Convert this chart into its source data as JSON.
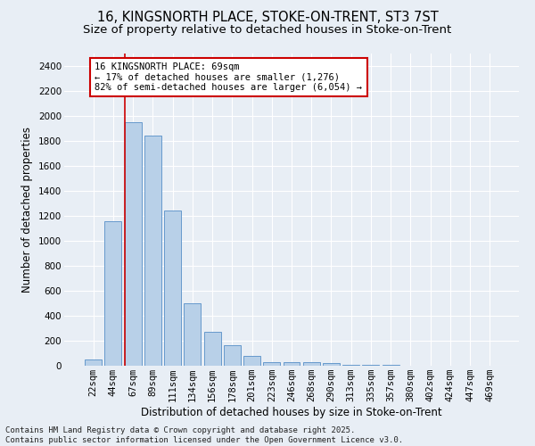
{
  "title_line1": "16, KINGSNORTH PLACE, STOKE-ON-TRENT, ST3 7ST",
  "title_line2": "Size of property relative to detached houses in Stoke-on-Trent",
  "xlabel": "Distribution of detached houses by size in Stoke-on-Trent",
  "ylabel": "Number of detached properties",
  "categories": [
    "22sqm",
    "44sqm",
    "67sqm",
    "89sqm",
    "111sqm",
    "134sqm",
    "156sqm",
    "178sqm",
    "201sqm",
    "223sqm",
    "246sqm",
    "268sqm",
    "290sqm",
    "313sqm",
    "335sqm",
    "357sqm",
    "380sqm",
    "402sqm",
    "424sqm",
    "447sqm",
    "469sqm"
  ],
  "values": [
    50,
    1160,
    1950,
    1840,
    1240,
    500,
    270,
    165,
    80,
    30,
    30,
    30,
    20,
    10,
    5,
    5,
    3,
    2,
    1,
    1,
    1
  ],
  "bar_color": "#b8d0e8",
  "bar_edge_color": "#6699cc",
  "vline_x_index": 2,
  "vline_color": "#cc0000",
  "annotation_text": "16 KINGSNORTH PLACE: 69sqm\n← 17% of detached houses are smaller (1,276)\n82% of semi-detached houses are larger (6,054) →",
  "annotation_box_facecolor": "#ffffff",
  "annotation_box_edgecolor": "#cc0000",
  "ylim": [
    0,
    2500
  ],
  "yticks": [
    0,
    200,
    400,
    600,
    800,
    1000,
    1200,
    1400,
    1600,
    1800,
    2000,
    2200,
    2400
  ],
  "fig_bg_color": "#e8eef5",
  "plot_bg_color": "#e8eef5",
  "grid_color": "#ffffff",
  "footnote": "Contains HM Land Registry data © Crown copyright and database right 2025.\nContains public sector information licensed under the Open Government Licence v3.0.",
  "title_fontsize": 10.5,
  "subtitle_fontsize": 9.5,
  "axis_label_fontsize": 8.5,
  "tick_fontsize": 7.5,
  "annotation_fontsize": 7.5,
  "footnote_fontsize": 6.5
}
